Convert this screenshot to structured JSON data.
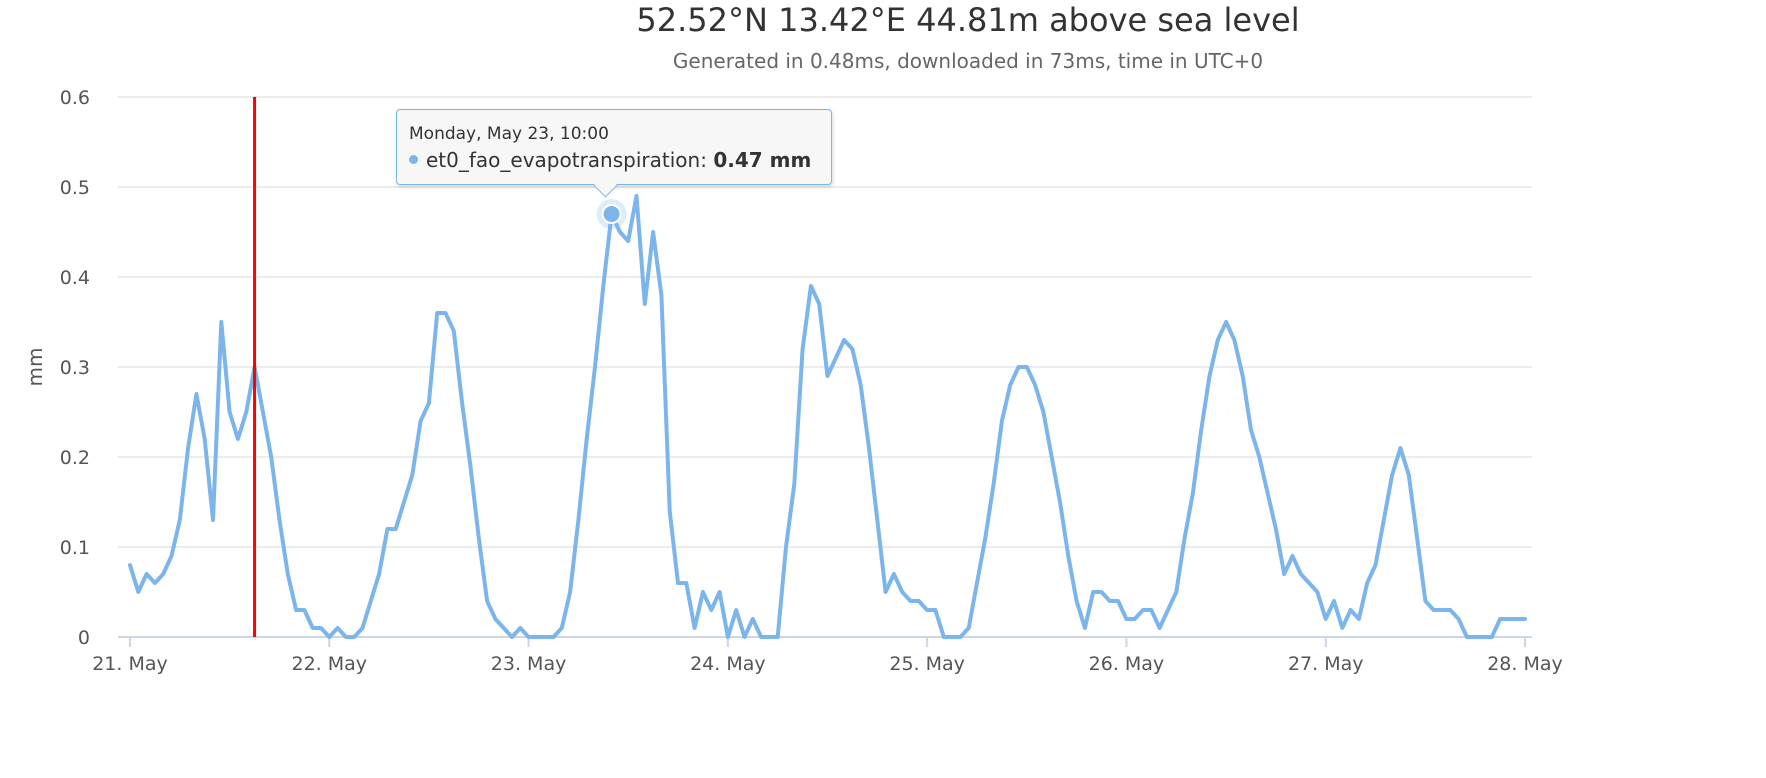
{
  "title": "52.52°N 13.42°E 44.81m above sea level",
  "subtitle": "Generated in 0.48ms, downloaded in 73ms, time in UTC+0",
  "colors": {
    "series": "#7cb5ec",
    "current_time_line": "#ff0000",
    "grid": "#e6e6e6",
    "axis": "#ccd6eb"
  },
  "tooltip": {
    "header": "Monday, May 23, 10:00",
    "series_name": "et0_fao_evapotranspiration",
    "value_text": "0.47 mm",
    "separator": ": "
  },
  "chart_data": {
    "type": "line",
    "title": "52.52°N 13.42°E 44.81m above sea level",
    "subtitle": "Generated in 0.48ms, downloaded in 73ms, time in UTC+0",
    "xlabel": "",
    "ylabel": "mm",
    "x_start_label": "21. May",
    "x_unit": "hours",
    "x_range_hours": [
      0,
      168
    ],
    "x_ticks": [
      {
        "hour": 0,
        "label": "21. May"
      },
      {
        "hour": 24,
        "label": "22. May"
      },
      {
        "hour": 48,
        "label": "23. May"
      },
      {
        "hour": 72,
        "label": "24. May"
      },
      {
        "hour": 96,
        "label": "25. May"
      },
      {
        "hour": 120,
        "label": "26. May"
      },
      {
        "hour": 144,
        "label": "27. May"
      },
      {
        "hour": 168,
        "label": "28. May"
      }
    ],
    "ylim": [
      0,
      0.6
    ],
    "y_ticks": [
      {
        "value": 0,
        "label": "0"
      },
      {
        "value": 0.1,
        "label": "0.1"
      },
      {
        "value": 0.2,
        "label": "0.2"
      },
      {
        "value": 0.3,
        "label": "0.3"
      },
      {
        "value": 0.4,
        "label": "0.4"
      },
      {
        "value": 0.5,
        "label": "0.5"
      },
      {
        "value": 0.6,
        "label": "0.6"
      }
    ],
    "grid": true,
    "current_time_hour": 15,
    "highlight": {
      "hour": 58,
      "value": 0.47
    },
    "series": [
      {
        "name": "et0_fao_evapotranspiration",
        "values": [
          0.08,
          0.05,
          0.07,
          0.06,
          0.07,
          0.09,
          0.13,
          0.21,
          0.27,
          0.22,
          0.13,
          0.35,
          0.25,
          0.22,
          0.25,
          0.3,
          0.25,
          0.2,
          0.13,
          0.07,
          0.03,
          0.03,
          0.01,
          0.01,
          0.0,
          0.01,
          0.0,
          0.0,
          0.01,
          0.04,
          0.07,
          0.12,
          0.12,
          0.15,
          0.18,
          0.24,
          0.26,
          0.36,
          0.36,
          0.34,
          0.26,
          0.19,
          0.11,
          0.04,
          0.02,
          0.01,
          0.0,
          0.01,
          0.0,
          0.0,
          0.0,
          0.0,
          0.01,
          0.05,
          0.13,
          0.22,
          0.3,
          0.39,
          0.47,
          0.45,
          0.44,
          0.49,
          0.37,
          0.45,
          0.38,
          0.14,
          0.06,
          0.06,
          0.01,
          0.05,
          0.03,
          0.05,
          0.0,
          0.03,
          0.0,
          0.02,
          0.0,
          0.0,
          0.0,
          0.1,
          0.17,
          0.32,
          0.39,
          0.37,
          0.29,
          0.31,
          0.33,
          0.32,
          0.28,
          0.21,
          0.13,
          0.05,
          0.07,
          0.05,
          0.04,
          0.04,
          0.03,
          0.03,
          0.0,
          0.0,
          0.0,
          0.01,
          0.06,
          0.11,
          0.17,
          0.24,
          0.28,
          0.3,
          0.3,
          0.28,
          0.25,
          0.2,
          0.15,
          0.09,
          0.04,
          0.01,
          0.05,
          0.05,
          0.04,
          0.04,
          0.02,
          0.02,
          0.03,
          0.03,
          0.01,
          0.03,
          0.05,
          0.11,
          0.16,
          0.23,
          0.29,
          0.33,
          0.35,
          0.33,
          0.29,
          0.23,
          0.2,
          0.16,
          0.12,
          0.07,
          0.09,
          0.07,
          0.06,
          0.05,
          0.02,
          0.04,
          0.01,
          0.03,
          0.02,
          0.06,
          0.08,
          0.13,
          0.18,
          0.21,
          0.18,
          0.11,
          0.04,
          0.03,
          0.03,
          0.03,
          0.02,
          0.0,
          0.0,
          0.0,
          0.0,
          0.02,
          0.02,
          0.02,
          0.02
        ]
      }
    ]
  }
}
